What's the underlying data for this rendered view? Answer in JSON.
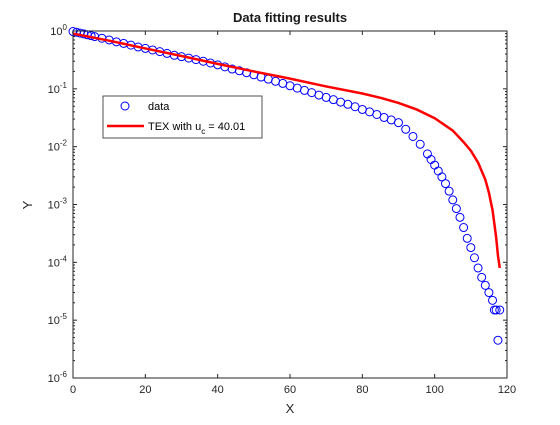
{
  "chart_data": {
    "type": "scatter",
    "title": "Data fitting results",
    "xlabel": "X",
    "ylabel": "Y",
    "xlim": [
      0,
      120
    ],
    "ylim": [
      1e-06,
      1
    ],
    "yscale": "log",
    "grid": false,
    "legend_position": "upper-left",
    "x_ticks": [
      "0",
      "20",
      "40",
      "60",
      "80",
      "100",
      "120"
    ],
    "x_tick_values": [
      0,
      20,
      40,
      60,
      80,
      100,
      120
    ],
    "y_tick_exponents": [
      0,
      -1,
      -2,
      -3,
      -4,
      -5,
      -6
    ],
    "y_tick_base": "10",
    "colors": {
      "data": "#0000ff",
      "fit": "#ff0000"
    },
    "series": [
      {
        "name": "data",
        "kind": "markers",
        "marker": "circle",
        "x": [
          0,
          1,
          2,
          3,
          4,
          5,
          6,
          8,
          10,
          12,
          14,
          16,
          18,
          20,
          22,
          24,
          26,
          28,
          30,
          32,
          34,
          36,
          38,
          40,
          42,
          44,
          46,
          48,
          50,
          52,
          54,
          56,
          58,
          60,
          62,
          64,
          66,
          68,
          70,
          72,
          74,
          76,
          78,
          80,
          82,
          84,
          86,
          88,
          90,
          92,
          94,
          96,
          98,
          99,
          100,
          101,
          102,
          103,
          104,
          105,
          106,
          107,
          108,
          109,
          110,
          111,
          112,
          113,
          114,
          115,
          116,
          116.5,
          117,
          117.5,
          118
        ],
        "y": [
          0.98,
          0.95,
          0.92,
          0.89,
          0.86,
          0.83,
          0.8,
          0.75,
          0.7,
          0.65,
          0.61,
          0.57,
          0.53,
          0.5,
          0.47,
          0.44,
          0.41,
          0.38,
          0.36,
          0.34,
          0.32,
          0.3,
          0.28,
          0.26,
          0.24,
          0.22,
          0.205,
          0.19,
          0.175,
          0.16,
          0.147,
          0.135,
          0.124,
          0.113,
          0.103,
          0.094,
          0.086,
          0.078,
          0.071,
          0.065,
          0.059,
          0.054,
          0.049,
          0.044,
          0.04,
          0.036,
          0.032,
          0.029,
          0.026,
          0.02,
          0.015,
          0.011,
          0.0075,
          0.006,
          0.0048,
          0.0038,
          0.003,
          0.0023,
          0.0017,
          0.0012,
          0.00085,
          0.0006,
          0.0004,
          0.00026,
          0.00018,
          0.00012,
          8e-05,
          5.5e-05,
          4e-05,
          3e-05,
          2.2e-05,
          1.5e-05,
          1.5e-05,
          4.5e-06,
          1.5e-05
        ]
      },
      {
        "name": "TEX with u",
        "name_subscript": "c",
        "name_suffix": " = 40.01",
        "kind": "line",
        "x": [
          0,
          10,
          20,
          30,
          40,
          50,
          60,
          70,
          80,
          85,
          90,
          95,
          100,
          105,
          108,
          110,
          112,
          114,
          115,
          116,
          117,
          117.5,
          118
        ],
        "y": [
          0.9,
          0.68,
          0.5,
          0.37,
          0.27,
          0.2,
          0.15,
          0.11,
          0.083,
          0.07,
          0.057,
          0.044,
          0.031,
          0.019,
          0.012,
          0.0085,
          0.0053,
          0.0027,
          0.0016,
          0.0008,
          0.00027,
          0.00013,
          8e-05
        ]
      }
    ]
  }
}
